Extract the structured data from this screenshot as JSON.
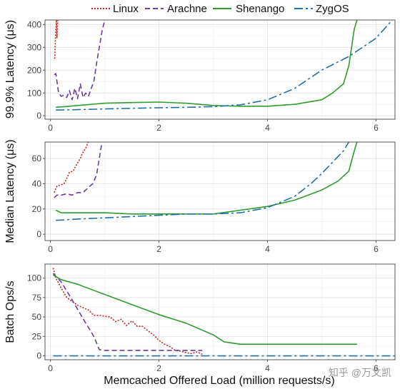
{
  "legend": [
    {
      "name": "Linux",
      "color": "#cc2222",
      "dash": "2,2"
    },
    {
      "name": "Arachne",
      "color": "#6a3d9a",
      "dash": "7,4"
    },
    {
      "name": "Shenango",
      "color": "#2e9c2e",
      "dash": ""
    },
    {
      "name": "ZygOS",
      "color": "#1f6fa8",
      "dash": "12,4,3,4"
    }
  ],
  "xlabel": "Memcached Offered Load (million requests/s)",
  "watermark": "知乎 @万文凯",
  "chart_data": [
    {
      "type": "line",
      "ylabel": "99.9% Latency (μs)",
      "xlim": [
        -0.1,
        6.35
      ],
      "ylim": [
        -15,
        420
      ],
      "xticks": [
        0,
        2,
        4,
        6
      ],
      "yticks": [
        0,
        100,
        200,
        300,
        400
      ],
      "grid": true,
      "series": [
        {
          "name": "Linux",
          "x": [
            0.08,
            0.09,
            0.1,
            0.11,
            0.12,
            0.13,
            0.14
          ],
          "y": [
            250,
            320,
            380,
            420,
            340,
            400,
            420
          ]
        },
        {
          "name": "Arachne",
          "x": [
            0.07,
            0.1,
            0.15,
            0.2,
            0.25,
            0.3,
            0.35,
            0.4,
            0.45,
            0.5,
            0.55,
            0.6,
            0.65,
            0.7,
            0.75,
            0.8,
            0.85,
            0.9,
            0.95,
            1.0
          ],
          "y": [
            180,
            185,
            100,
            85,
            90,
            80,
            110,
            70,
            120,
            75,
            140,
            80,
            100,
            85,
            120,
            150,
            230,
            300,
            370,
            420
          ]
        },
        {
          "name": "Shenango",
          "x": [
            0.1,
            0.5,
            1.0,
            1.5,
            2.0,
            2.5,
            3.0,
            3.5,
            4.0,
            4.5,
            5.0,
            5.2,
            5.4,
            5.5,
            5.55,
            5.6,
            5.65
          ],
          "y": [
            37,
            45,
            55,
            58,
            60,
            55,
            45,
            42,
            42,
            50,
            70,
            100,
            140,
            220,
            300,
            380,
            420
          ]
        },
        {
          "name": "ZygOS",
          "x": [
            0.1,
            0.5,
            1.0,
            1.5,
            2.0,
            2.5,
            3.0,
            3.5,
            4.0,
            4.5,
            5.0,
            5.5,
            6.0,
            6.3
          ],
          "y": [
            25,
            27,
            30,
            33,
            35,
            37,
            40,
            48,
            70,
            120,
            200,
            260,
            340,
            420
          ]
        }
      ]
    },
    {
      "type": "line",
      "ylabel": "Median Latency (μs)",
      "xlim": [
        -0.1,
        6.35
      ],
      "ylim": [
        -5,
        73
      ],
      "xticks": [
        0,
        2,
        4,
        6
      ],
      "yticks": [
        0,
        20,
        40,
        60
      ],
      "grid": true,
      "series": [
        {
          "name": "Linux",
          "x": [
            0.07,
            0.12,
            0.18,
            0.25,
            0.3,
            0.35,
            0.42,
            0.48,
            0.55,
            0.6,
            0.65,
            0.7
          ],
          "y": [
            33,
            38,
            39,
            40,
            44,
            49,
            50,
            55,
            60,
            65,
            68,
            73
          ]
        },
        {
          "name": "Arachne",
          "x": [
            0.07,
            0.12,
            0.2,
            0.3,
            0.4,
            0.5,
            0.6,
            0.7,
            0.78,
            0.85,
            0.9,
            0.95
          ],
          "y": [
            29,
            31,
            31,
            32,
            31,
            33,
            33,
            37,
            40,
            47,
            60,
            73
          ]
        },
        {
          "name": "Shenango",
          "x": [
            0.1,
            0.2,
            0.5,
            1.0,
            1.5,
            2.0,
            2.5,
            3.0,
            3.5,
            4.0,
            4.5,
            5.0,
            5.3,
            5.5,
            5.55,
            5.6,
            5.65
          ],
          "y": [
            19,
            17,
            17,
            17,
            16,
            16,
            16,
            16,
            19,
            22,
            27,
            35,
            42,
            50,
            58,
            66,
            73
          ]
        },
        {
          "name": "ZygOS",
          "x": [
            0.1,
            0.5,
            1.0,
            1.5,
            2.0,
            2.5,
            3.0,
            3.5,
            4.0,
            4.5,
            4.8,
            5.0,
            5.2,
            5.4,
            5.5
          ],
          "y": [
            11,
            12,
            13,
            14,
            15,
            16,
            16,
            17,
            21,
            30,
            40,
            48,
            57,
            66,
            73
          ]
        }
      ]
    },
    {
      "type": "line",
      "ylabel": "Batch Ops/s",
      "xlim": [
        -0.1,
        6.35
      ],
      "ylim": [
        -5,
        118
      ],
      "xticks": [
        0,
        2,
        4,
        6
      ],
      "yticks": [
        0,
        25,
        50,
        75,
        100
      ],
      "grid": true,
      "series": [
        {
          "name": "Linux",
          "x": [
            0.05,
            0.1,
            0.2,
            0.3,
            0.4,
            0.5,
            0.6,
            0.7,
            0.8,
            0.9,
            1.0,
            1.1,
            1.2,
            1.3,
            1.4,
            1.5,
            1.6,
            1.7,
            1.8,
            1.9,
            2.0,
            2.1,
            2.2,
            2.3,
            2.4,
            2.5,
            2.6,
            2.7,
            2.8
          ],
          "y": [
            113,
            100,
            87,
            75,
            70,
            65,
            62,
            59,
            52,
            52,
            51,
            50,
            44,
            47,
            39,
            45,
            38,
            38,
            32,
            27,
            20,
            15,
            12,
            7,
            6,
            4,
            3,
            5,
            2
          ]
        },
        {
          "name": "Arachne",
          "x": [
            0.05,
            0.2,
            0.4,
            0.6,
            0.8,
            0.9,
            1.0,
            1.5,
            2.0,
            2.5,
            2.8
          ],
          "y": [
            106,
            95,
            72,
            48,
            25,
            8,
            7,
            7,
            7,
            7,
            7
          ]
        },
        {
          "name": "Shenango",
          "x": [
            0.05,
            0.2,
            0.5,
            1.0,
            1.5,
            2.0,
            2.5,
            3.0,
            3.2,
            3.5,
            4.0,
            4.5,
            5.0,
            5.5,
            5.65
          ],
          "y": [
            104,
            98,
            92,
            79,
            66,
            53,
            42,
            27,
            18,
            15,
            15,
            15,
            15,
            15,
            15
          ]
        },
        {
          "name": "ZygOS",
          "x": [
            0.05,
            1.0,
            2.0,
            3.0,
            4.0,
            5.0,
            6.0,
            6.35
          ],
          "y": [
            0,
            0,
            0,
            0,
            0,
            0,
            0,
            0
          ]
        }
      ]
    }
  ]
}
